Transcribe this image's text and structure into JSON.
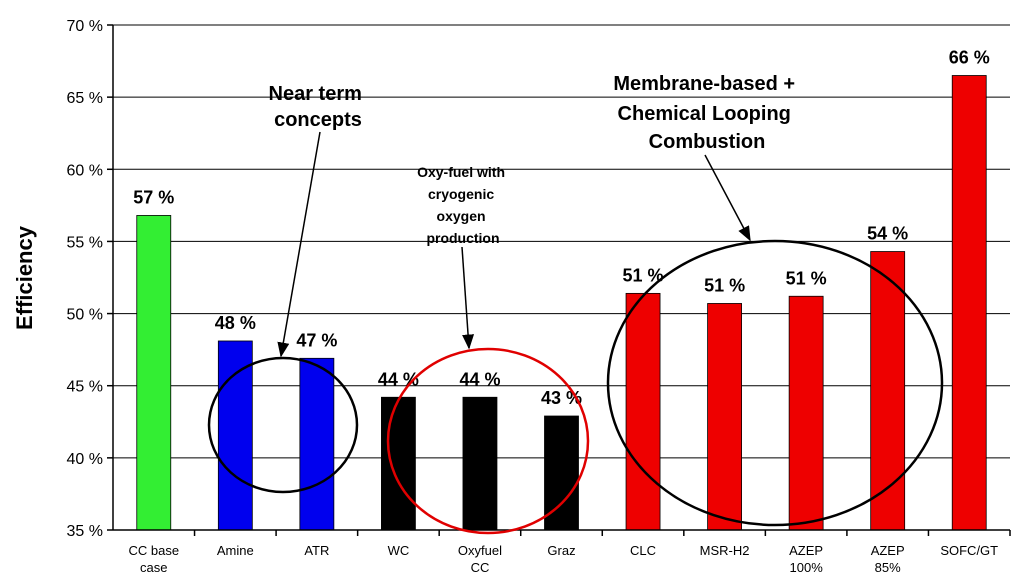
{
  "chart_data": {
    "type": "bar",
    "ylabel": "Efficiency",
    "ylim": [
      35,
      70
    ],
    "yticks": [
      35,
      40,
      45,
      50,
      55,
      60,
      65,
      70
    ],
    "ytick_suffix": " %",
    "grid": "horizontal",
    "categories": [
      [
        "CC base",
        "case"
      ],
      [
        "Amine"
      ],
      [
        "ATR"
      ],
      [
        "WC"
      ],
      [
        "Oxyfuel",
        "CC"
      ],
      [
        "Graz"
      ],
      [
        "CLC"
      ],
      [
        "MSR-H2"
      ],
      [
        "AZEP",
        "100%"
      ],
      [
        "AZEP",
        "85%"
      ],
      [
        "SOFC/GT"
      ]
    ],
    "values": [
      56.8,
      48.1,
      46.9,
      44.2,
      44.2,
      42.9,
      51.4,
      50.7,
      51.2,
      54.3,
      66.5
    ],
    "data_labels": [
      "57 %",
      "48 %",
      "47 %",
      "44 %",
      "44 %",
      "43 %",
      "51 %",
      "51 %",
      "51 %",
      "54 %",
      "66 %"
    ],
    "colors": [
      "#33ee33",
      "#0000ee",
      "#0000ee",
      "#000000",
      "#000000",
      "#000000",
      "#ee0000",
      "#ee0000",
      "#ee0000",
      "#ee0000",
      "#ee0000"
    ],
    "annotations": [
      {
        "lines": [
          "Near term",
          "concepts"
        ]
      },
      {
        "lines": [
          "Oxy-fuel with",
          "cryogenic",
          "oxygen",
          "production"
        ]
      },
      {
        "lines": [
          "Membrane-based +",
          "Chemical Looping",
          "Combustion"
        ]
      }
    ]
  }
}
